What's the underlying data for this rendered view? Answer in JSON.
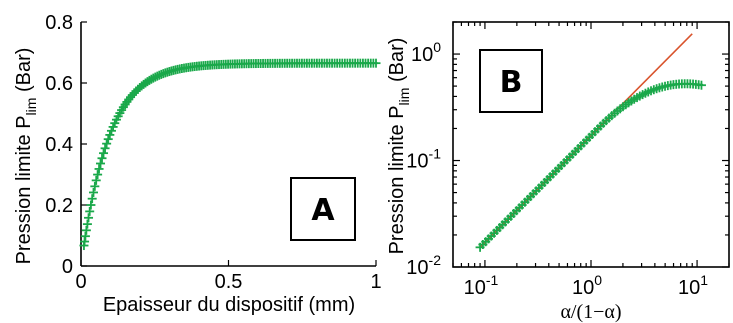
{
  "colors": {
    "marker": "#1aa84a",
    "fit_line": "#d9532c",
    "axis": "#000000"
  },
  "chart_data": [
    {
      "type": "scatter",
      "panel_label": "A",
      "xlabel": "Epaisseur du dispositif (mm)",
      "ylabel_main": "Pression limite P",
      "ylabel_sub": "lim",
      "ylabel_unit": " (Bar)",
      "xlim": [
        0,
        1
      ],
      "ylim": [
        0,
        0.8
      ],
      "x_ticks": [
        0,
        0.5,
        1
      ],
      "x_tick_labels": [
        "0",
        "0.5",
        "1"
      ],
      "y_ticks": [
        0,
        0.2,
        0.4,
        0.6,
        0.8
      ],
      "y_tick_labels": [
        "0",
        "0.2",
        "0.4",
        "0.6",
        "0.8"
      ],
      "grid": false,
      "marker": "+",
      "model": {
        "description": "saturating curve",
        "plateau": 0.665,
        "scale": 0.094
      },
      "x_range_for_points": [
        0.01,
        1.0
      ],
      "n_points": 140
    },
    {
      "type": "scatter",
      "panel_label": "B",
      "xlabel": "α/(1−α)",
      "ylabel_main": "Pression limite P",
      "ylabel_sub": "lim",
      "ylabel_unit": " (Bar)",
      "xscale": "log",
      "yscale": "log",
      "xlim": [
        0.05,
        20
      ],
      "ylim": [
        0.01,
        2
      ],
      "x_ticks": [
        0.1,
        1,
        10
      ],
      "y_ticks": [
        0.01,
        0.1,
        1
      ],
      "x_tick_bases": [
        "10",
        "10",
        "10"
      ],
      "x_tick_exps": [
        "-1",
        "0",
        "1"
      ],
      "y_tick_bases": [
        "10",
        "10",
        "10"
      ],
      "y_tick_exps": [
        "-2",
        "-1",
        "0"
      ],
      "grid": false,
      "marker": "+",
      "x_range_for_points": [
        0.09,
        11
      ],
      "n_points": 80,
      "fit_line": {
        "x": [
          0.09,
          9
        ],
        "y": [
          0.0153,
          1.55
        ]
      }
    }
  ]
}
